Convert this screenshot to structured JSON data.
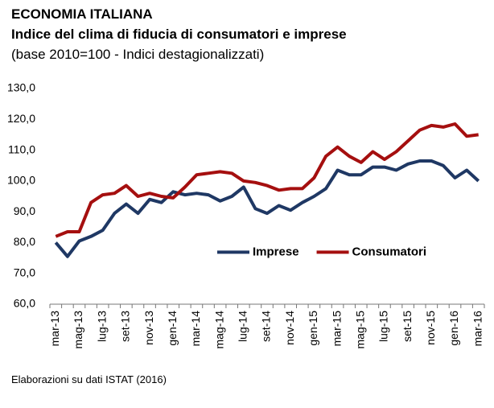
{
  "chart_data": {
    "type": "line",
    "title": "ECONOMIA ITALIANA",
    "subtitle": "Indice del clima di fiducia di consumatori e imprese",
    "note": "(base 2010=100 - Indici destagionalizzati)",
    "source": "Elaborazioni su dati ISTAT (2016)",
    "categories": [
      "mar-13",
      null,
      "mag-13",
      null,
      "lug-13",
      null,
      "set-13",
      null,
      "nov-13",
      null,
      "gen-14",
      null,
      "mar-14",
      null,
      "mag-14",
      null,
      "lug-14",
      null,
      "set-14",
      null,
      "nov-14",
      null,
      "gen-15",
      null,
      "mar-15",
      null,
      "mag-15",
      null,
      "lug-15",
      null,
      "set-15",
      null,
      "nov-15",
      null,
      "gen-16",
      null,
      "mar-16"
    ],
    "series": [
      {
        "name": "Imprese",
        "color": "#1f3864",
        "values": [
          80,
          75.5,
          80.5,
          82,
          84,
          89.5,
          92.5,
          89.5,
          94,
          93,
          96.5,
          95.5,
          96,
          95.5,
          93.5,
          95,
          98,
          91,
          89.5,
          92,
          90.5,
          93,
          95,
          97.5,
          103.5,
          102,
          102,
          104.5,
          104.5,
          103.5,
          105.5,
          106.5,
          106.5,
          105,
          101,
          103.5,
          100
        ]
      },
      {
        "name": "Consumatori",
        "color": "#a50f0f",
        "values": [
          82,
          83.5,
          83.5,
          93,
          95.5,
          96,
          98.5,
          95,
          96,
          95,
          94.5,
          98,
          102,
          102.5,
          103,
          102.5,
          100,
          99.5,
          98.5,
          97,
          97.5,
          97.5,
          101,
          108,
          111,
          108,
          106,
          109.5,
          107,
          109.5,
          113,
          116.5,
          118,
          117.5,
          118.5,
          114.5,
          115
        ]
      }
    ],
    "ylim": [
      60,
      130
    ],
    "yticks": [
      {
        "value": 60,
        "label": "60,0"
      },
      {
        "value": 70,
        "label": "70,0"
      },
      {
        "value": 80,
        "label": "80,0"
      },
      {
        "value": 90,
        "label": "90,0"
      },
      {
        "value": 100,
        "label": "100,0"
      },
      {
        "value": 110,
        "label": "110,0"
      },
      {
        "value": 120,
        "label": "120,0"
      },
      {
        "value": 130,
        "label": "130,0"
      }
    ],
    "legend": "center-right"
  }
}
